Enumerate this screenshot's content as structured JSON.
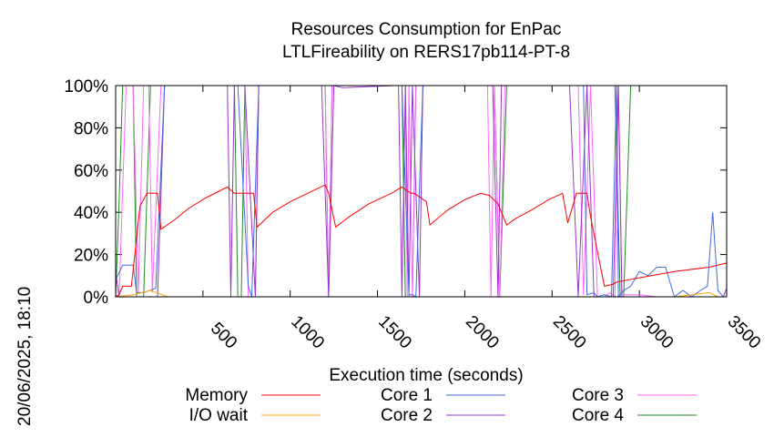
{
  "chart_data": {
    "type": "line",
    "title": "Resources Consumption for EnPac",
    "subtitle": "LTLFireability on RERS17pb114-PT-8",
    "xlabel": "Execution time (seconds)",
    "ylabel": "",
    "xlim": [
      0,
      3500
    ],
    "ylim": [
      0,
      100
    ],
    "x_ticks": [
      "500",
      "1000",
      "1500",
      "2000",
      "2500",
      "3000",
      "3500"
    ],
    "x_tick_values": [
      500,
      1000,
      1500,
      2000,
      2500,
      3000,
      3500
    ],
    "y_ticks": [
      "0%",
      "20%",
      "40%",
      "60%",
      "80%",
      "100%"
    ],
    "y_tick_values": [
      0,
      20,
      40,
      60,
      80,
      100
    ],
    "grid": false,
    "legend_position": "bottom",
    "timestamp": "20/06/2025, 18:10",
    "series": [
      {
        "name": "Memory",
        "color": "#ff0000",
        "x": [
          0,
          20,
          40,
          90,
          140,
          180,
          240,
          260,
          330,
          420,
          520,
          640,
          680,
          790,
          810,
          900,
          1000,
          1100,
          1200,
          1220,
          1260,
          1340,
          1450,
          1580,
          1640,
          1690,
          1710,
          1780,
          1800,
          1900,
          2000,
          2090,
          2140,
          2190,
          2240,
          2290,
          2380,
          2480,
          2560,
          2590,
          2640,
          2700,
          2720,
          2780,
          2800,
          2850,
          2870,
          3000,
          3200,
          3400,
          3500
        ],
        "values": [
          0,
          1,
          5,
          5,
          43,
          49,
          49,
          32,
          36,
          42,
          47,
          52,
          49,
          49,
          33,
          40,
          45,
          49,
          53,
          49,
          33,
          38,
          44,
          49,
          52,
          49,
          49,
          45,
          34,
          41,
          46,
          49,
          48,
          44,
          34,
          37,
          41,
          46,
          49,
          35,
          49,
          49,
          38,
          13,
          5,
          6,
          7,
          9,
          12,
          14,
          16
        ]
      },
      {
        "name": "I/O wait",
        "color": "#ffa500",
        "x": [
          0,
          100,
          200,
          300,
          400,
          600,
          1000,
          1500,
          2000,
          2500,
          2800,
          3000,
          3200,
          3300,
          3400,
          3450,
          3500
        ],
        "values": [
          0,
          1,
          3,
          0,
          0,
          0,
          0,
          0,
          0,
          0,
          0,
          0,
          0,
          1,
          2,
          0,
          0
        ]
      },
      {
        "name": "Core 1",
        "color": "#4169e1",
        "x": [
          0,
          40,
          100,
          120,
          160,
          230,
          280,
          340,
          680,
          700,
          760,
          780,
          820,
          1200,
          1230,
          1600,
          1640,
          1680,
          1700,
          1720,
          1760,
          2180,
          2200,
          2260,
          2680,
          2700,
          2740,
          2760,
          2800,
          2840,
          2870,
          2880,
          2910,
          2950,
          3000,
          3050,
          3100,
          3150,
          3200,
          3250,
          3300,
          3350,
          3390,
          3420,
          3450,
          3480,
          3500
        ],
        "values": [
          8,
          15,
          15,
          2,
          2,
          4,
          100,
          100,
          100,
          100,
          5,
          0,
          100,
          100,
          100,
          100,
          100,
          1,
          1,
          0,
          100,
          100,
          100,
          100,
          100,
          1,
          2,
          0,
          1,
          0,
          100,
          0,
          3,
          5,
          12,
          10,
          14,
          14,
          0,
          3,
          0,
          3,
          5,
          40,
          3,
          0,
          0
        ]
      },
      {
        "name": "Core 2",
        "color": "#9932cc",
        "x": [
          0,
          20,
          80,
          100,
          130,
          160,
          180,
          240,
          280,
          300,
          600,
          640,
          660,
          680,
          740,
          800,
          820,
          860,
          1180,
          1220,
          1250,
          1300,
          1600,
          1620,
          1640,
          1660,
          1680,
          1700,
          1740,
          1760,
          1800,
          2160,
          2190,
          2210,
          2250,
          2600,
          2650,
          2700,
          2740,
          2800,
          2850,
          2880,
          2900,
          3000,
          3100,
          3300,
          3480,
          3500
        ],
        "values": [
          12,
          0,
          0,
          0,
          0,
          0,
          0,
          0,
          100,
          100,
          100,
          100,
          0,
          100,
          100,
          0,
          100,
          100,
          100,
          0,
          100,
          99,
          100,
          100,
          0,
          100,
          0,
          100,
          0,
          100,
          100,
          100,
          0,
          100,
          100,
          100,
          0,
          100,
          0,
          0,
          0,
          100,
          0,
          0,
          0,
          0,
          0,
          4
        ]
      },
      {
        "name": "Core 3",
        "color": "#ff66ff",
        "x": [
          0,
          20,
          60,
          80,
          100,
          130,
          160,
          190,
          210,
          260,
          300,
          680,
          700,
          720,
          740,
          760,
          800,
          820,
          1200,
          1220,
          1240,
          1260,
          1660,
          1670,
          1680,
          1700,
          1720,
          1760,
          2130,
          2150,
          2170,
          2200,
          2230,
          2250,
          2650,
          2680,
          2720,
          2760,
          2800,
          2830,
          2860,
          2880,
          2900,
          2920,
          3000,
          3100,
          3300,
          3500
        ],
        "values": [
          0,
          0,
          100,
          100,
          100,
          2,
          100,
          100,
          2,
          100,
          100,
          100,
          100,
          100,
          100,
          0,
          0,
          100,
          100,
          0,
          100,
          100,
          100,
          0,
          100,
          0,
          100,
          100,
          100,
          0,
          100,
          0,
          100,
          100,
          100,
          1,
          100,
          0,
          0,
          2,
          0,
          100,
          0,
          1,
          1,
          0,
          0,
          0
        ]
      },
      {
        "name": "Core 4",
        "color": "#228b22",
        "x": [
          0,
          20,
          40,
          100,
          120,
          160,
          200,
          680,
          700,
          720,
          740,
          1200,
          1220,
          1240,
          1640,
          1660,
          1700,
          1720,
          2170,
          2200,
          2240,
          2680,
          2700,
          2860,
          2890,
          2910,
          2950,
          3000,
          3500
        ],
        "values": [
          0,
          45,
          100,
          100,
          0,
          0,
          100,
          100,
          0,
          0,
          100,
          100,
          0,
          100,
          100,
          0,
          0,
          100,
          100,
          0,
          100,
          100,
          100,
          100,
          0,
          0,
          100,
          100,
          100
        ]
      }
    ]
  }
}
